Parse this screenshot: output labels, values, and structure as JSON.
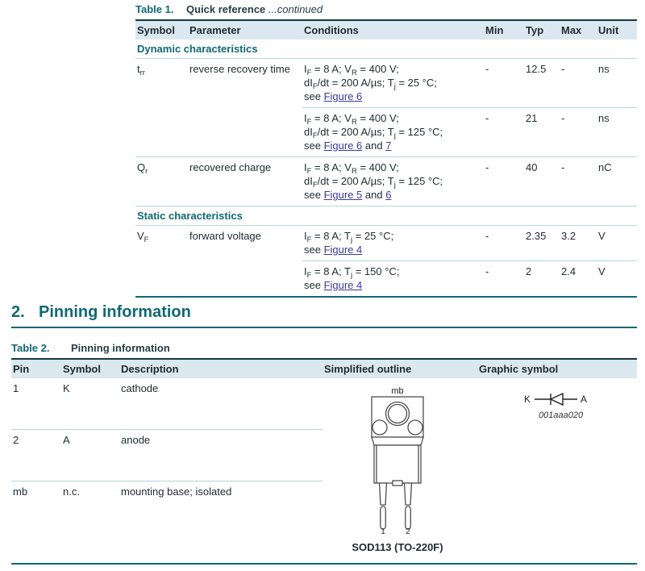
{
  "colors": {
    "accent_teal": "#0f6876",
    "dark_rule": "#163945",
    "header_bg": "#dbe8f0",
    "row_rule": "#b9d3df",
    "link": "#3a3a9e"
  },
  "table1": {
    "caption": {
      "label": "Table 1.",
      "title": "Quick reference",
      "suffix": "...continued"
    },
    "headers": {
      "symbol": "Symbol",
      "parameter": "Parameter",
      "conditions": "Conditions",
      "min": "Min",
      "typ": "Typ",
      "max": "Max",
      "unit": "Unit"
    },
    "sections": {
      "dynamic": "Dynamic characteristics",
      "static": "Static characteristics"
    },
    "rows": [
      {
        "symbol": "t~rr~",
        "parameter": "reverse recovery time",
        "conditions": "I~F~ = 8 A; V~R~ = 400 V;\ndI~F~/dt = 200 A/µs; T~j~ = 25 °C;\nsee [[Figure 6]]",
        "min": "-",
        "typ": "12.5",
        "max": "-",
        "unit": "ns"
      },
      {
        "symbol": "",
        "parameter": "",
        "conditions": "I~F~ = 8 A; V~R~ = 400 V;\ndI~F~/dt = 200 A/µs; T~j~ = 125 °C;\nsee [[Figure 6]] and [[7]]",
        "min": "-",
        "typ": "21",
        "max": "-",
        "unit": "ns"
      },
      {
        "symbol": "Q~r~",
        "parameter": "recovered charge",
        "conditions": "I~F~ = 8 A; V~R~ = 400 V;\ndI~F~/dt = 200 A/µs; T~j~ = 125 °C;\nsee [[Figure 5]] and [[6]]",
        "min": "-",
        "typ": "40",
        "max": "-",
        "unit": "nC"
      },
      {
        "symbol": "V~F~",
        "parameter": "forward voltage",
        "conditions": "I~F~ = 8 A; T~j~ = 25 °C;\nsee [[Figure 4]]",
        "min": "-",
        "typ": "2.35",
        "max": "3.2",
        "unit": "V"
      },
      {
        "symbol": "",
        "parameter": "",
        "conditions": "I~F~ = 8 A; T~j~ = 150 °C;\nsee [[Figure 4]]",
        "min": "-",
        "typ": "2",
        "max": "2.4",
        "unit": "V"
      }
    ]
  },
  "section_heading": {
    "number": "2.",
    "title": "Pinning information"
  },
  "table2": {
    "caption": {
      "label": "Table 2.",
      "title": "Pinning information"
    },
    "headers": {
      "pin": "Pin",
      "symbol": "Symbol",
      "description": "Description",
      "outline": "Simplified outline",
      "graphic": "Graphic symbol"
    },
    "rows": [
      {
        "pin": "1",
        "symbol": "K",
        "description": "cathode"
      },
      {
        "pin": "2",
        "symbol": "A",
        "description": "anode"
      },
      {
        "pin": "mb",
        "symbol": "n.c.",
        "description": "mounting base; isolated"
      }
    ],
    "outline": {
      "mb_label": "mb",
      "pin1_label": "1",
      "pin2_label": "2",
      "package_name": "SOD113 (TO-220F)"
    },
    "graphic": {
      "cathode_label": "K",
      "anode_label": "A",
      "drawing_id": "001aaa020"
    }
  }
}
